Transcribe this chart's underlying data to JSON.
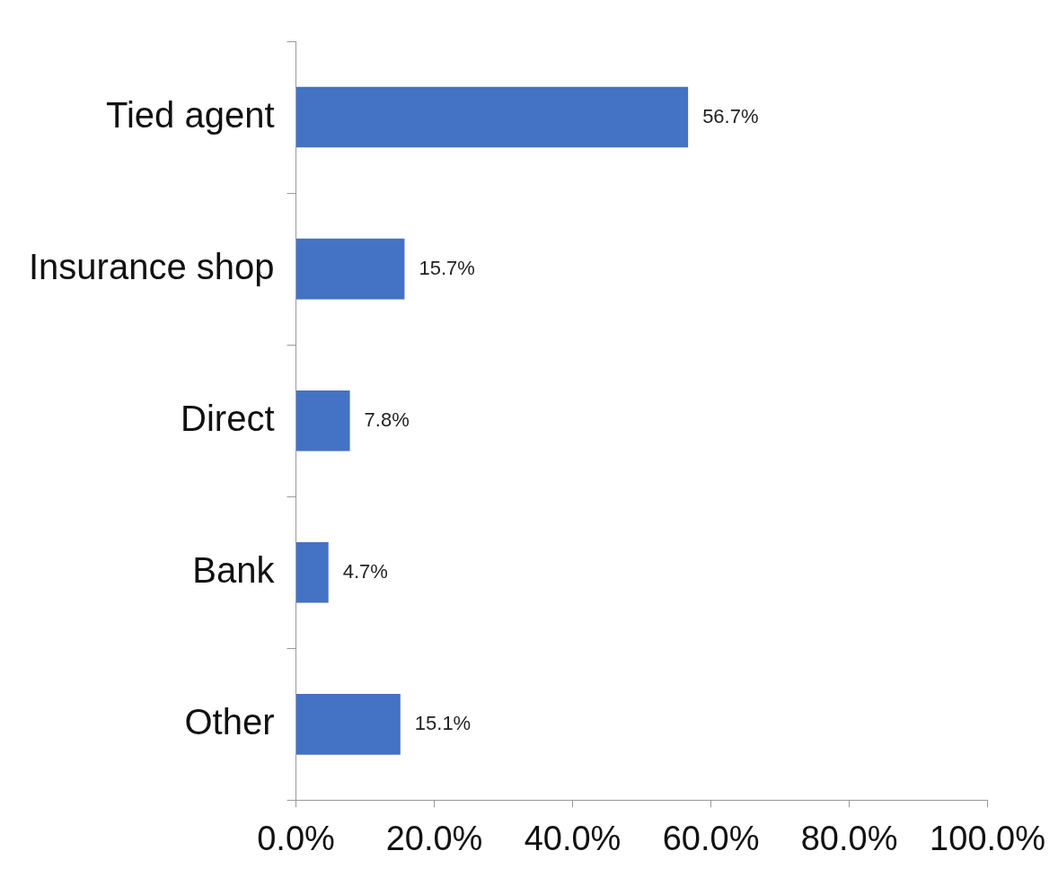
{
  "chart_data": {
    "type": "bar",
    "orientation": "horizontal",
    "categories": [
      "Tied agent",
      "Insurance shop",
      "Direct",
      "Bank",
      "Other"
    ],
    "values": [
      56.7,
      15.7,
      7.8,
      4.7,
      15.1
    ],
    "color": "#4472c4",
    "value_labels": [
      "56.7%",
      "15.7%",
      "7.8%",
      "4.7%",
      "15.1%"
    ],
    "xlim": [
      0,
      100
    ],
    "xticks": [
      {
        "value": 0,
        "label": "0.0%"
      },
      {
        "value": 20,
        "label": "20.0%"
      },
      {
        "value": 40,
        "label": "40.0%"
      },
      {
        "value": 60,
        "label": "60.0%"
      },
      {
        "value": 80,
        "label": "80.0%"
      },
      {
        "value": 100,
        "label": "100.0%"
      }
    ],
    "grid": false,
    "legend": false
  }
}
